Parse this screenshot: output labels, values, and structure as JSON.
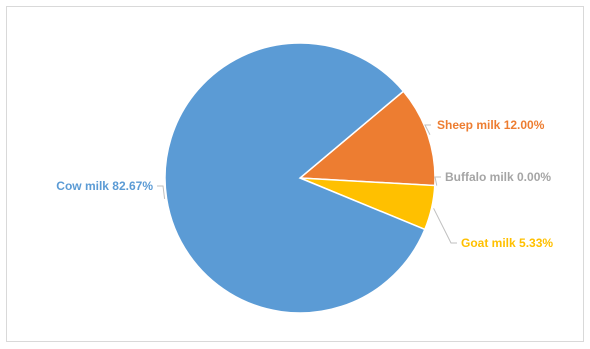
{
  "chart_data": {
    "type": "pie",
    "title": "",
    "slices": [
      {
        "name": "Sheep milk",
        "value": 12.0,
        "label": "Sheep milk 12.00%",
        "color": "#ed7d31"
      },
      {
        "name": "Buffalo milk",
        "value": 0.0,
        "label": "Buffalo milk 0.00%",
        "color": "#a5a5a5"
      },
      {
        "name": "Goat milk",
        "value": 5.33,
        "label": "Goat milk 5.33%",
        "color": "#ffc000"
      },
      {
        "name": "Cow milk",
        "value": 82.67,
        "label": "Cow milk 82.67%",
        "color": "#5b9bd5"
      }
    ],
    "legend": "none",
    "data_labels": "outside-with-leader-lines"
  }
}
